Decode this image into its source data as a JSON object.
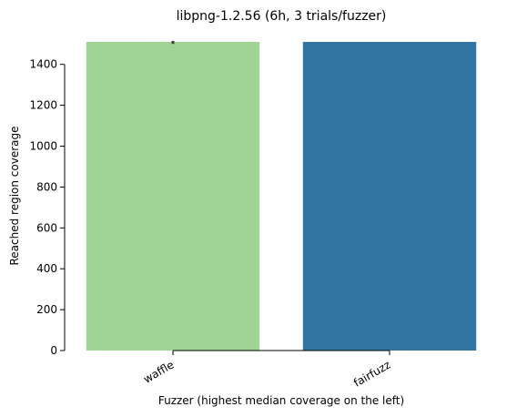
{
  "chart_data": {
    "type": "bar",
    "title": "libpng-1.2.56 (6h, 3 trials/fuzzer)",
    "xlabel": "Fuzzer (highest median coverage on the left)",
    "ylabel": "Reached region coverage",
    "categories": [
      "waffle",
      "fairfuzz"
    ],
    "values": [
      1510,
      1510
    ],
    "error_bars": [
      [
        1500,
        1515
      ],
      [
        1510,
        1510
      ]
    ],
    "colors": [
      "#a0d494",
      "#3274a1"
    ],
    "ylim": [
      0,
      1510
    ],
    "yticks": [
      0,
      200,
      400,
      600,
      800,
      1000,
      1200,
      1400
    ],
    "grid": false,
    "legend": "none"
  }
}
